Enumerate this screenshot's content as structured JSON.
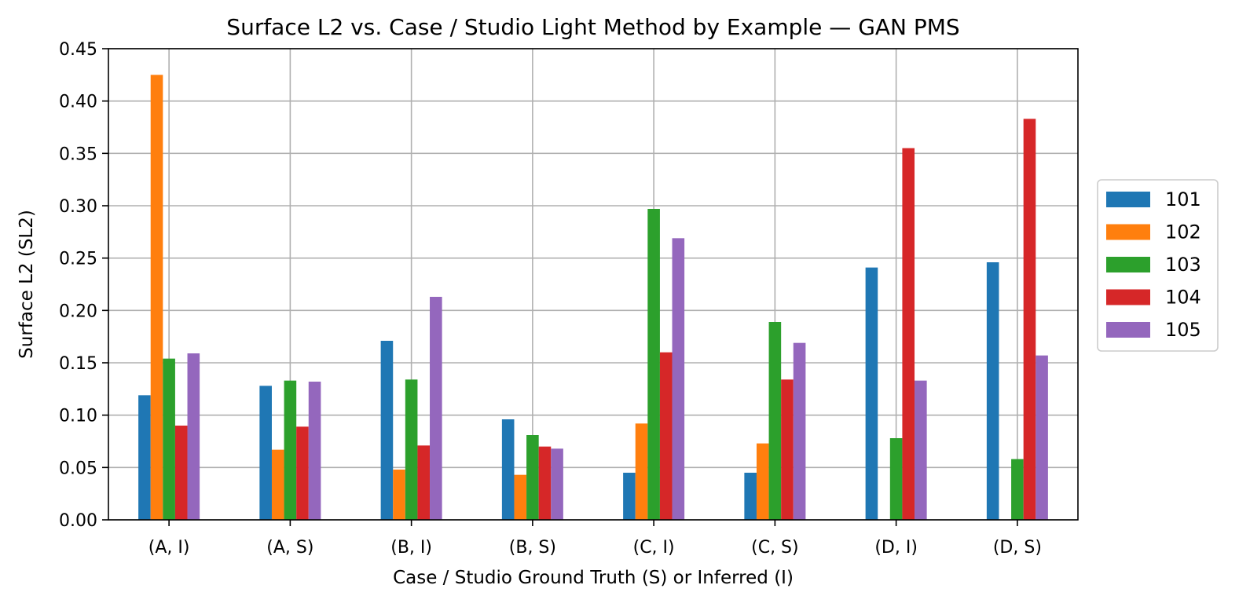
{
  "chart_data": {
    "type": "bar",
    "title": "Surface L2 vs. Case / Studio Light Method by Example — GAN PMS",
    "xlabel": "Case / Studio Ground Truth (S) or Inferred (I)",
    "ylabel": "Surface L2 (SL2)",
    "categories": [
      "(A, I)",
      "(A, S)",
      "(B, I)",
      "(B, S)",
      "(C, I)",
      "(C, S)",
      "(D, I)",
      "(D, S)"
    ],
    "ylim": [
      0,
      0.45
    ],
    "yticks": [
      "0.00",
      "0.05",
      "0.10",
      "0.15",
      "0.20",
      "0.25",
      "0.30",
      "0.35",
      "0.40",
      "0.45"
    ],
    "grid": true,
    "legend_position": "right",
    "series": [
      {
        "name": "101",
        "color": "#1f77b4",
        "values": [
          0.119,
          0.128,
          0.171,
          0.096,
          0.045,
          0.045,
          0.241,
          0.246
        ]
      },
      {
        "name": "102",
        "color": "#ff7f0e",
        "values": [
          0.425,
          0.067,
          0.048,
          0.043,
          0.092,
          0.073,
          0.0,
          0.0
        ]
      },
      {
        "name": "103",
        "color": "#2ca02c",
        "values": [
          0.154,
          0.133,
          0.134,
          0.081,
          0.297,
          0.189,
          0.078,
          0.058
        ]
      },
      {
        "name": "104",
        "color": "#d62728",
        "values": [
          0.09,
          0.089,
          0.071,
          0.07,
          0.16,
          0.134,
          0.355,
          0.383
        ]
      },
      {
        "name": "105",
        "color": "#9467bd",
        "values": [
          0.159,
          0.132,
          0.213,
          0.068,
          0.269,
          0.169,
          0.133,
          0.157
        ]
      }
    ]
  }
}
